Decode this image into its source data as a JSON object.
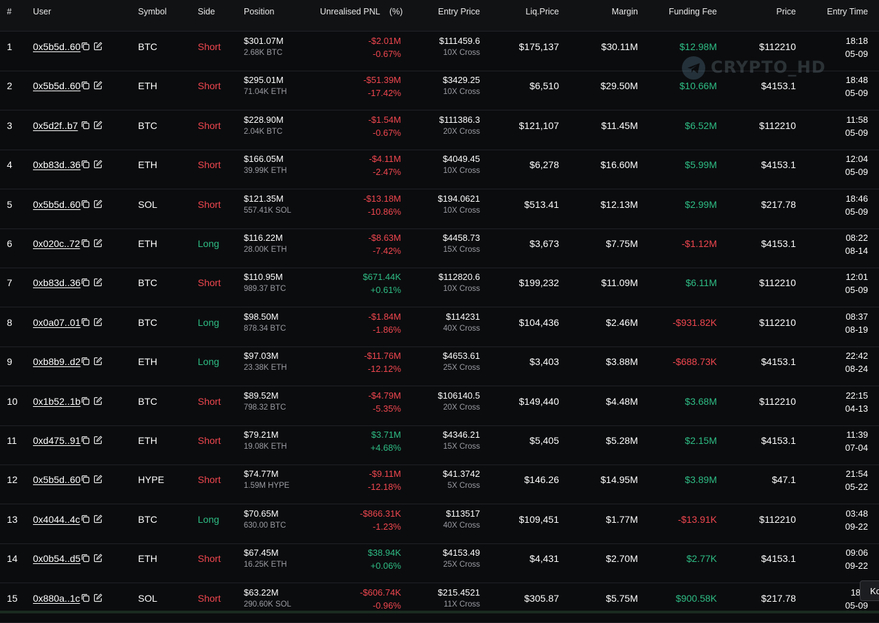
{
  "columns": {
    "rank": "#",
    "user": "User",
    "symbol": "Symbol",
    "side": "Side",
    "position": "Position",
    "pnl": "Unrealised PNL",
    "pct": "(%)",
    "entry": "Entry Price",
    "liq": "Liq.Price",
    "margin": "Margin",
    "funding": "Funding Fee",
    "price": "Price",
    "time": "Entry Time"
  },
  "watermark": "CRYPTO_HD",
  "corner_chip": "Ko",
  "colors": {
    "red": "#f0474f",
    "green": "#2ebd85",
    "bg": "#0b0c0e"
  },
  "rows": [
    {
      "rank": "1",
      "user": "0x5b5d..60",
      "symbol": "BTC",
      "side": "Short",
      "pos": "$301.07M",
      "size": "2.68K BTC",
      "pnl": "-$2.01M",
      "pct": "-0.67%",
      "entry": "$111459.6",
      "lev": "10X Cross",
      "liq": "$175,137",
      "margin": "$30.11M",
      "fee": "$12.98M",
      "price": "$112210",
      "time": "18:18",
      "date": "05-09"
    },
    {
      "rank": "2",
      "user": "0x5b5d..60",
      "symbol": "ETH",
      "side": "Short",
      "pos": "$295.01M",
      "size": "71.04K ETH",
      "pnl": "-$51.39M",
      "pct": "-17.42%",
      "entry": "$3429.25",
      "lev": "10X Cross",
      "liq": "$6,510",
      "margin": "$29.50M",
      "fee": "$10.66M",
      "price": "$4153.1",
      "time": "18:48",
      "date": "05-09"
    },
    {
      "rank": "3",
      "user": "0x5d2f..b7",
      "symbol": "BTC",
      "side": "Short",
      "pos": "$228.90M",
      "size": "2.04K BTC",
      "pnl": "-$1.54M",
      "pct": "-0.67%",
      "entry": "$111386.3",
      "lev": "20X Cross",
      "liq": "$121,107",
      "margin": "$11.45M",
      "fee": "$6.52M",
      "price": "$112210",
      "time": "11:58",
      "date": "05-09"
    },
    {
      "rank": "4",
      "user": "0xb83d..36",
      "symbol": "ETH",
      "side": "Short",
      "pos": "$166.05M",
      "size": "39.99K ETH",
      "pnl": "-$4.11M",
      "pct": "-2.47%",
      "entry": "$4049.45",
      "lev": "10X Cross",
      "liq": "$6,278",
      "margin": "$16.60M",
      "fee": "$5.99M",
      "price": "$4153.1",
      "time": "12:04",
      "date": "05-09"
    },
    {
      "rank": "5",
      "user": "0x5b5d..60",
      "symbol": "SOL",
      "side": "Short",
      "pos": "$121.35M",
      "size": "557.41K SOL",
      "pnl": "-$13.18M",
      "pct": "-10.86%",
      "entry": "$194.0621",
      "lev": "10X Cross",
      "liq": "$513.41",
      "margin": "$12.13M",
      "fee": "$2.99M",
      "price": "$217.78",
      "time": "18:46",
      "date": "05-09"
    },
    {
      "rank": "6",
      "user": "0x020c..72",
      "symbol": "ETH",
      "side": "Long",
      "pos": "$116.22M",
      "size": "28.00K ETH",
      "pnl": "-$8.63M",
      "pct": "-7.42%",
      "entry": "$4458.73",
      "lev": "15X Cross",
      "liq": "$3,673",
      "margin": "$7.75M",
      "fee": "-$1.12M",
      "price": "$4153.1",
      "time": "08:22",
      "date": "08-14"
    },
    {
      "rank": "7",
      "user": "0xb83d..36",
      "symbol": "BTC",
      "side": "Short",
      "pos": "$110.95M",
      "size": "989.37 BTC",
      "pnl": "$671.44K",
      "pct": "+0.61%",
      "entry": "$112820.6",
      "lev": "10X Cross",
      "liq": "$199,232",
      "margin": "$11.09M",
      "fee": "$6.11M",
      "price": "$112210",
      "time": "12:01",
      "date": "05-09"
    },
    {
      "rank": "8",
      "user": "0x0a07..01",
      "symbol": "BTC",
      "side": "Long",
      "pos": "$98.50M",
      "size": "878.34 BTC",
      "pnl": "-$1.84M",
      "pct": "-1.86%",
      "entry": "$114231",
      "lev": "40X Cross",
      "liq": "$104,436",
      "margin": "$2.46M",
      "fee": "-$931.82K",
      "price": "$112210",
      "time": "08:37",
      "date": "08-19"
    },
    {
      "rank": "9",
      "user": "0xb8b9..d2",
      "symbol": "ETH",
      "side": "Long",
      "pos": "$97.03M",
      "size": "23.38K ETH",
      "pnl": "-$11.76M",
      "pct": "-12.12%",
      "entry": "$4653.61",
      "lev": "25X Cross",
      "liq": "$3,403",
      "margin": "$3.88M",
      "fee": "-$688.73K",
      "price": "$4153.1",
      "time": "22:42",
      "date": "08-24"
    },
    {
      "rank": "10",
      "user": "0x1b52..1b",
      "symbol": "BTC",
      "side": "Short",
      "pos": "$89.52M",
      "size": "798.32 BTC",
      "pnl": "-$4.79M",
      "pct": "-5.35%",
      "entry": "$106140.5",
      "lev": "20X Cross",
      "liq": "$149,440",
      "margin": "$4.48M",
      "fee": "$3.68M",
      "price": "$112210",
      "time": "22:15",
      "date": "04-13"
    },
    {
      "rank": "11",
      "user": "0xd475..91",
      "symbol": "ETH",
      "side": "Short",
      "pos": "$79.21M",
      "size": "19.08K ETH",
      "pnl": "$3.71M",
      "pct": "+4.68%",
      "entry": "$4346.21",
      "lev": "15X Cross",
      "liq": "$5,405",
      "margin": "$5.28M",
      "fee": "$2.15M",
      "price": "$4153.1",
      "time": "11:39",
      "date": "07-04"
    },
    {
      "rank": "12",
      "user": "0x5b5d..60",
      "symbol": "HYPE",
      "side": "Short",
      "pos": "$74.77M",
      "size": "1.59M HYPE",
      "pnl": "-$9.11M",
      "pct": "-12.18%",
      "entry": "$41.3742",
      "lev": "5X Cross",
      "liq": "$146.26",
      "margin": "$14.95M",
      "fee": "$3.89M",
      "price": "$47.1",
      "time": "21:54",
      "date": "05-22"
    },
    {
      "rank": "13",
      "user": "0x4044..4c",
      "symbol": "BTC",
      "side": "Long",
      "pos": "$70.65M",
      "size": "630.00 BTC",
      "pnl": "-$866.31K",
      "pct": "-1.23%",
      "entry": "$113517",
      "lev": "40X Cross",
      "liq": "$109,451",
      "margin": "$1.77M",
      "fee": "-$13.91K",
      "price": "$112210",
      "time": "03:48",
      "date": "09-22"
    },
    {
      "rank": "14",
      "user": "0x0b54..d5",
      "symbol": "ETH",
      "side": "Short",
      "pos": "$67.45M",
      "size": "16.25K ETH",
      "pnl": "$38.94K",
      "pct": "+0.06%",
      "entry": "$4153.49",
      "lev": "25X Cross",
      "liq": "$4,431",
      "margin": "$2.70M",
      "fee": "$2.77K",
      "price": "$4153.1",
      "time": "09:06",
      "date": "09-22"
    },
    {
      "rank": "15",
      "user": "0x880a..1c",
      "symbol": "SOL",
      "side": "Short",
      "pos": "$63.22M",
      "size": "290.60K SOL",
      "pnl": "-$606.74K",
      "pct": "-0.96%",
      "entry": "$215.4521",
      "lev": "11X Cross",
      "liq": "$305.87",
      "margin": "$5.75M",
      "fee": "$900.58K",
      "price": "$217.78",
      "time": "18:0",
      "date": "05-09"
    }
  ]
}
